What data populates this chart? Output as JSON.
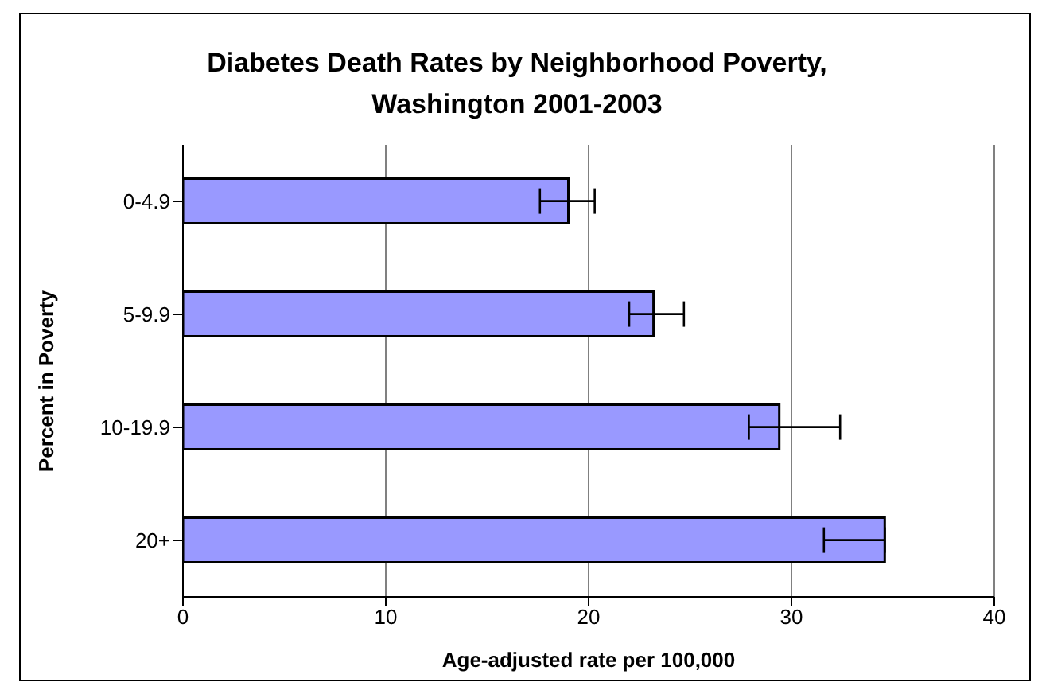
{
  "chart_data": {
    "type": "bar",
    "orientation": "horizontal",
    "title": "Diabetes Death Rates by Neighborhood Poverty, Washington 2001-2003",
    "xlabel": "Age-adjusted rate per 100,000",
    "ylabel": "Percent in Poverty",
    "categories": [
      "0-4.9",
      "5-9.9",
      "10-19.9",
      "20+"
    ],
    "values": [
      19.0,
      23.2,
      29.4,
      34.6
    ],
    "errors": [
      [
        17.6,
        20.3
      ],
      [
        22.0,
        24.7
      ],
      [
        27.9,
        32.4
      ],
      [
        31.6,
        34.6
      ]
    ],
    "color": "#9999ff",
    "xlim": [
      0,
      40
    ],
    "xticks": [
      0,
      10,
      20,
      30,
      40
    ],
    "grid": "x",
    "legend": false
  }
}
